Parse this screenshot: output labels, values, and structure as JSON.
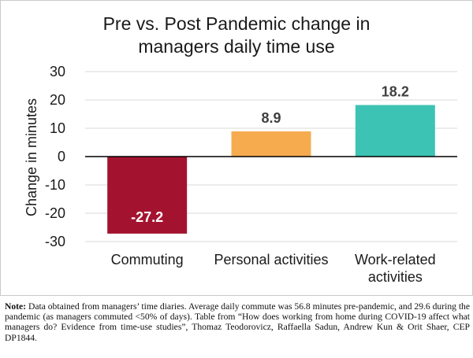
{
  "chart_data": {
    "type": "bar",
    "title_lines": [
      "Pre vs. Post Pandemic change in",
      "managers daily time use"
    ],
    "ylabel": "Change in minutes",
    "xlabel": "",
    "ylim": [
      -30,
      30
    ],
    "yticks": [
      30,
      20,
      10,
      0,
      -10,
      -20,
      -30
    ],
    "grid": true,
    "legend": "none",
    "categories": [
      {
        "lines": [
          "Commuting"
        ]
      },
      {
        "lines": [
          "Personal activities"
        ]
      },
      {
        "lines": [
          "Work-related",
          "activities"
        ]
      }
    ],
    "values": [
      -27.2,
      8.9,
      18.2
    ],
    "value_labels": [
      "-27.2",
      "8.9",
      "18.2"
    ],
    "colors": [
      "#a3132f",
      "#f6ab4f",
      "#3cc3b3"
    ],
    "label_colors": [
      "#ffffff",
      "#404040",
      "#404040"
    ]
  },
  "note": {
    "label": "Note:",
    "text": " Data obtained from managers’ time diaries. Average daily commute was 56.8 minutes pre-pandemic, and 29.6 during the pandemic (as managers commuted <50% of days). Table from “How does working from home during COVID-19 affect what managers do? Evidence from time-use studies”, Thomaz Teodorovicz, Raffaella Sadun, Andrew Kun & Orit Shaer, CEP DP1844."
  }
}
